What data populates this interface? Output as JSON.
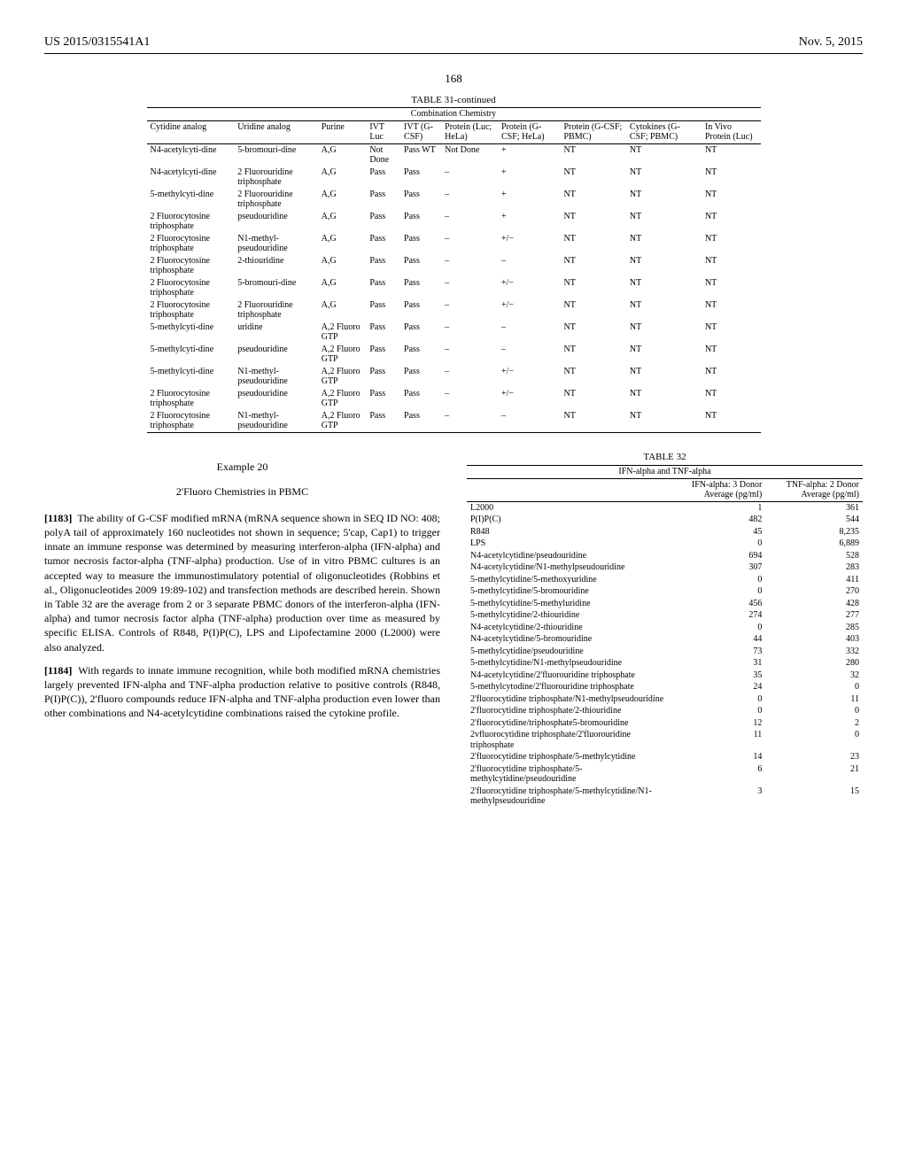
{
  "header": {
    "pub_no": "US 2015/0315541A1",
    "pub_date": "Nov. 5, 2015",
    "page_no": "168"
  },
  "table31": {
    "title": "TABLE 31-continued",
    "subtitle": "Combination Chemistry",
    "columns": [
      "Cytidine analog",
      "Uridine analog",
      "Purine",
      "IVT Luc",
      "IVT (G-CSF)",
      "Protein (Luc; HeLa)",
      "Protein (G-CSF; HeLa)",
      "Protein (G-CSF; PBMC)",
      "Cytokines (G-CSF; PBMC)",
      "In Vivo Protein (Luc)"
    ],
    "rows": [
      [
        "N4-acetylcyti-dine",
        "5-bromouri-dine",
        "A,G",
        "Not Done",
        "Pass WT",
        "Not Done",
        "+",
        "NT",
        "NT",
        "NT"
      ],
      [
        "N4-acetylcyti-dine",
        "2 Fluorouridine triphosphate",
        "A,G",
        "Pass",
        "Pass",
        "–",
        "+",
        "NT",
        "NT",
        "NT"
      ],
      [
        "5-methylcyti-dine",
        "2 Fluorouridine triphosphate",
        "A,G",
        "Pass",
        "Pass",
        "–",
        "+",
        "NT",
        "NT",
        "NT"
      ],
      [
        "2 Fluorocytosine triphosphate",
        "pseudouridine",
        "A,G",
        "Pass",
        "Pass",
        "–",
        "+",
        "NT",
        "NT",
        "NT"
      ],
      [
        "2 Fluorocytosine triphosphate",
        "N1-methyl-pseudouridine",
        "A,G",
        "Pass",
        "Pass",
        "–",
        "+/−",
        "NT",
        "NT",
        "NT"
      ],
      [
        "2 Fluorocytosine triphosphate",
        "2-thiouridine",
        "A,G",
        "Pass",
        "Pass",
        "–",
        "–",
        "NT",
        "NT",
        "NT"
      ],
      [
        "2 Fluorocytosine triphosphate",
        "5-bromouri-dine",
        "A,G",
        "Pass",
        "Pass",
        "–",
        "+/−",
        "NT",
        "NT",
        "NT"
      ],
      [
        "2 Fluorocytosine triphosphate",
        "2 Fluorouridine triphosphate",
        "A,G",
        "Pass",
        "Pass",
        "–",
        "+/−",
        "NT",
        "NT",
        "NT"
      ],
      [
        "5-methylcyti-dine",
        "uridine",
        "A,2 Fluoro GTP",
        "Pass",
        "Pass",
        "–",
        "–",
        "NT",
        "NT",
        "NT"
      ],
      [
        "5-methylcyti-dine",
        "pseudouridine",
        "A,2 Fluoro GTP",
        "Pass",
        "Pass",
        "–",
        "–",
        "NT",
        "NT",
        "NT"
      ],
      [
        "5-methylcyti-dine",
        "N1-methyl-pseudouridine",
        "A,2 Fluoro GTP",
        "Pass",
        "Pass",
        "–",
        "+/−",
        "NT",
        "NT",
        "NT"
      ],
      [
        "2 Fluorocytosine triphosphate",
        "pseudouridine",
        "A,2 Fluoro GTP",
        "Pass",
        "Pass",
        "–",
        "+/−",
        "NT",
        "NT",
        "NT"
      ],
      [
        "2 Fluorocytosine triphosphate",
        "N1-methyl-pseudouridine",
        "A,2 Fluoro GTP",
        "Pass",
        "Pass",
        "–",
        "–",
        "NT",
        "NT",
        "NT"
      ]
    ]
  },
  "example": {
    "title": "Example 20",
    "subtitle": "2'Fluoro Chemistries in PBMC",
    "p1_num": "[1183]",
    "p1": "The ability of G-CSF modified mRNA (mRNA sequence shown in SEQ ID NO: 408; polyA tail of approximately 160 nucleotides not shown in sequence; 5'cap, Cap1) to trigger innate an immune response was determined by measuring interferon-alpha (IFN-alpha) and tumor necrosis factor-alpha (TNF-alpha) production. Use of in vitro PBMC cultures is an accepted way to measure the immunostimulatory potential of oligonucleotides (Robbins et al., Oligonucleotides 2009 19:89-102) and transfection methods are described herein. Shown in Table 32 are the average from 2 or 3 separate PBMC donors of the interferon-alpha (IFN-alpha) and tumor necrosis factor alpha (TNF-alpha) production over time as measured by specific ELISA. Controls of R848, P(I)P(C), LPS and Lipofectamine 2000 (L2000) were also analyzed.",
    "p2_num": "[1184]",
    "p2": "With regards to innate immune recognition, while both modified mRNA chemistries largely prevented IFN-alpha and TNF-alpha production relative to positive controls (R848, P(I)P(C)), 2'fluoro compounds reduce IFN-alpha and TNF-alpha production even lower than other combinations and N4-acetylcytidine combinations raised the cytokine profile."
  },
  "table32": {
    "title": "TABLE 32",
    "subtitle": "IFN-alpha and TNF-alpha",
    "col1": "IFN-alpha: 3 Donor Average (pg/ml)",
    "col2": "TNF-alpha: 2 Donor Average (pg/ml)",
    "rows": [
      [
        "L2000",
        "1",
        "361"
      ],
      [
        "P(I)P(C)",
        "482",
        "544"
      ],
      [
        "R848",
        "45",
        "8,235"
      ],
      [
        "LPS",
        "0",
        "6,889"
      ],
      [
        "N4-acetylcytidine/pseudouridine",
        "694",
        "528"
      ],
      [
        "N4-acetylcytidine/N1-methylpseudouridine",
        "307",
        "283"
      ],
      [
        "5-methylcytidine/5-methoxyuridine",
        "0",
        "411"
      ],
      [
        "5-methylcytidine/5-bromouridine",
        "0",
        "270"
      ],
      [
        "5-methylcytidine/5-methyluridine",
        "456",
        "428"
      ],
      [
        "5-methylcytidine/2-thiouridine",
        "274",
        "277"
      ],
      [
        "N4-acetylcytidine/2-thiouridine",
        "0",
        "285"
      ],
      [
        "N4-acetylcytidine/5-bromouridine",
        "44",
        "403"
      ],
      [
        "5-methylcytidine/pseudouridine",
        "73",
        "332"
      ],
      [
        "5-methylcytidine/N1-methylpseudouridine",
        "31",
        "280"
      ],
      [
        "N4-acetylcytidine/2'fluorouridine triphosphate",
        "35",
        "32"
      ],
      [
        "5-methylcytodine/2'fluorouridine triphosphate",
        "24",
        "0"
      ],
      [
        "2'fluorocytidine triphosphate/N1-methylpseudouridine",
        "0",
        "11"
      ],
      [
        "2'fluorocytidine triphosphate/2-thiouridine",
        "0",
        "0"
      ],
      [
        "2'fluorocytidine/triphosphate5-bromouridine",
        "12",
        "2"
      ],
      [
        "2vfluorocytidine triphosphate/2'fluorouridine triphosphate",
        "11",
        "0"
      ],
      [
        "2'fluorocytidine triphosphate/5-methylcytidine",
        "14",
        "23"
      ],
      [
        "2'fluorocytidine triphosphate/5-methylcytidine/pseudouridine",
        "6",
        "21"
      ],
      [
        "2'fluorocytidine triphosphate/5-methylcytidine/N1-methylpseudouridine",
        "3",
        "15"
      ]
    ]
  }
}
